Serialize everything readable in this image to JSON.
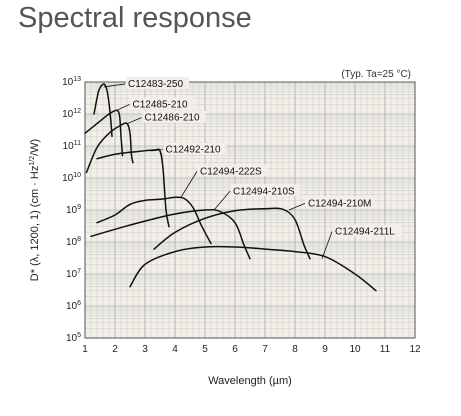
{
  "page": {
    "title": "Spectral response"
  },
  "chart_data": {
    "type": "line",
    "title": "",
    "xlabel": "Wavelength (µm)",
    "ylabel_parts": {
      "prefix": "D* (λ, 1200, 1) (cm · Hz",
      "sup": "1/2",
      "suffix": "/W)"
    },
    "annotation": "(Typ. Ta=25 °C)",
    "x_range": [
      1,
      12
    ],
    "x_ticks": [
      1,
      2,
      3,
      4,
      5,
      6,
      7,
      8,
      9,
      10,
      11,
      12
    ],
    "y_scale": "log",
    "y_range": [
      100000,
      10000000000000
    ],
    "y_ticks": [
      {
        "value": 10000000000000,
        "base": "10",
        "exp": "13"
      },
      {
        "value": 1000000000000,
        "base": "10",
        "exp": "12"
      },
      {
        "value": 100000000000,
        "base": "10",
        "exp": "11"
      },
      {
        "value": 10000000000,
        "base": "10",
        "exp": "10"
      },
      {
        "value": 1000000000,
        "base": "10",
        "exp": "9"
      },
      {
        "value": 100000000,
        "base": "10",
        "exp": "8"
      },
      {
        "value": 10000000,
        "base": "10",
        "exp": "7"
      },
      {
        "value": 1000000,
        "base": "10",
        "exp": "6"
      },
      {
        "value": 100000,
        "base": "10",
        "exp": "5"
      }
    ],
    "grid": true,
    "series": [
      {
        "name": "C12483-250",
        "label_at": [
          2.4,
          7000000000000
        ],
        "leader_from": [
          1.63,
          7000000000000
        ],
        "points": [
          [
            1.3,
            1000000000000
          ],
          [
            1.45,
            5000000000000
          ],
          [
            1.6,
            8500000000000
          ],
          [
            1.7,
            7000000000000
          ],
          [
            1.78,
            3000000000000
          ],
          [
            1.85,
            800000000000
          ],
          [
            1.9,
            200000000000
          ]
        ]
      },
      {
        "name": "C12485-210",
        "label_at": [
          2.55,
          1600000000000
        ],
        "leader_from": [
          2.05,
          1300000000000
        ],
        "points": [
          [
            1.0,
            250000000000
          ],
          [
            1.4,
            500000000000
          ],
          [
            1.8,
            1000000000000
          ],
          [
            2.05,
            1300000000000
          ],
          [
            2.15,
            900000000000
          ],
          [
            2.2,
            200000000000
          ],
          [
            2.25,
            50000000000
          ]
        ]
      },
      {
        "name": "C12486-210",
        "label_at": [
          2.95,
          620000000000
        ],
        "leader_from": [
          2.4,
          500000000000
        ],
        "points": [
          [
            1.05,
            15000000000
          ],
          [
            1.4,
            90000000000
          ],
          [
            1.8,
            250000000000
          ],
          [
            2.2,
            450000000000
          ],
          [
            2.4,
            500000000000
          ],
          [
            2.5,
            250000000000
          ],
          [
            2.55,
            50000000000
          ],
          [
            2.6,
            30000000000
          ]
        ]
      },
      {
        "name": "C12492-210",
        "label_at": [
          3.65,
          62000000000
        ],
        "leader_from": [
          3.2,
          70000000000
        ],
        "points": [
          [
            1.4,
            40000000000
          ],
          [
            2.0,
            55000000000
          ],
          [
            2.6,
            65000000000
          ],
          [
            3.3,
            75000000000
          ],
          [
            3.5,
            70000000000
          ],
          [
            3.6,
            20000000000
          ],
          [
            3.7,
            1000000000
          ],
          [
            3.8,
            300000000
          ]
        ]
      },
      {
        "name": "C12494-222S",
        "label_at": [
          4.8,
          13000000000
        ],
        "leader_from": [
          4.2,
          2500000000
        ],
        "points": [
          [
            1.4,
            400000000
          ],
          [
            2.0,
            700000000
          ],
          [
            2.5,
            1500000000
          ],
          [
            3.0,
            2000000000
          ],
          [
            3.6,
            2200000000
          ],
          [
            4.0,
            2500000000
          ],
          [
            4.3,
            2300000000
          ],
          [
            4.6,
            1200000000
          ],
          [
            4.9,
            300000000
          ],
          [
            5.2,
            90000000
          ]
        ]
      },
      {
        "name": "C12494-210S",
        "label_at": [
          5.9,
          3100000000
        ],
        "leader_from": [
          5.3,
          1000000000
        ],
        "points": [
          [
            1.2,
            150000000
          ],
          [
            2.0,
            250000000
          ],
          [
            3.0,
            450000000
          ],
          [
            4.0,
            750000000
          ],
          [
            5.0,
            1000000000
          ],
          [
            5.5,
            900000000
          ],
          [
            6.0,
            400000000
          ],
          [
            6.3,
            80000000
          ],
          [
            6.5,
            30000000
          ]
        ]
      },
      {
        "name": "C12494-210M",
        "label_at": [
          8.4,
          1300000000
        ],
        "leader_from": [
          7.8,
          1000000000
        ],
        "points": [
          [
            3.3,
            60000000
          ],
          [
            4.0,
            200000000
          ],
          [
            5.0,
            550000000
          ],
          [
            6.0,
            950000000
          ],
          [
            7.0,
            1100000000
          ],
          [
            7.6,
            1050000000
          ],
          [
            8.0,
            500000000
          ],
          [
            8.3,
            80000000
          ],
          [
            8.5,
            30000000
          ]
        ]
      },
      {
        "name": "C12494-211L",
        "label_at": [
          9.3,
          170000000
        ],
        "leader_from": [
          8.9,
          30000000
        ],
        "points": [
          [
            2.5,
            4000000
          ],
          [
            3.0,
            20000000
          ],
          [
            4.0,
            50000000
          ],
          [
            5.0,
            70000000
          ],
          [
            6.0,
            70000000
          ],
          [
            7.0,
            60000000
          ],
          [
            8.0,
            50000000
          ],
          [
            9.0,
            35000000
          ],
          [
            10.0,
            10000000
          ],
          [
            10.7,
            3000000
          ]
        ]
      }
    ]
  }
}
